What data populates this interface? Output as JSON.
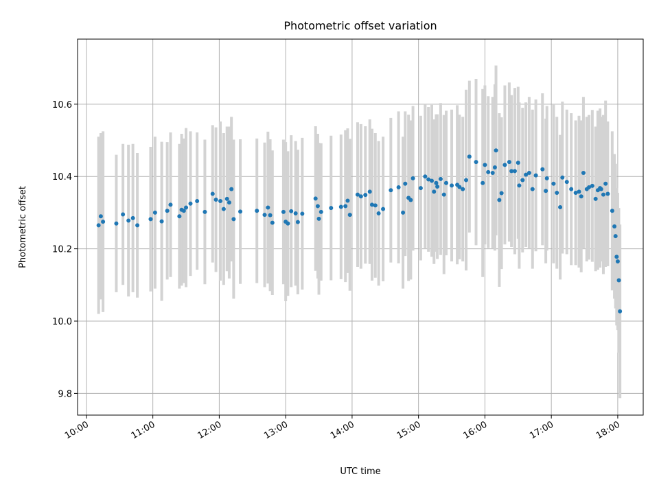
{
  "chart_data": {
    "type": "scatter",
    "title": "Photometric offset variation",
    "xlabel": "UTC time",
    "ylabel": "Photometric offset",
    "x_axis_kind": "time",
    "xlim": [
      "09:52",
      "18:23"
    ],
    "ylim": [
      9.74,
      10.78
    ],
    "x_ticks": [
      "10:00",
      "11:00",
      "12:00",
      "13:00",
      "14:00",
      "15:00",
      "16:00",
      "17:00",
      "18:00"
    ],
    "y_ticks": [
      "9.8",
      "10.0",
      "10.2",
      "10.4",
      "10.6"
    ],
    "grid": true,
    "marker_color": "#1f77b4",
    "errorbar_color": "#d3d3d3",
    "series": [
      {
        "x": [
          "10:11",
          "10:13",
          "10:15",
          "10:27",
          "10:33",
          "10:38",
          "10:42",
          "10:46",
          "10:58",
          "11:02",
          "11:08",
          "11:13",
          "11:16",
          "11:24",
          "11:26",
          "11:28",
          "11:30",
          "11:34",
          "11:40",
          "11:47",
          "11:54",
          "11:57",
          "12:01",
          "12:04",
          "12:07",
          "12:09",
          "12:11",
          "12:13",
          "12:19",
          "12:34",
          "12:41",
          "12:44",
          "12:46",
          "12:48",
          "12:58",
          "13:00",
          "13:02",
          "13:05",
          "13:09",
          "13:11",
          "13:15",
          "13:27",
          "13:29",
          "13:30",
          "13:32",
          "13:41",
          "13:50",
          "13:54",
          "13:56",
          "13:58",
          "14:05",
          "14:08",
          "14:12",
          "14:16",
          "14:18",
          "14:21",
          "14:24",
          "14:28",
          "14:35",
          "14:42",
          "14:46",
          "14:48",
          "14:51",
          "14:53",
          "14:55",
          "15:02",
          "15:06",
          "15:09",
          "15:12",
          "15:14",
          "15:16",
          "15:17",
          "15:20",
          "15:23",
          "15:25",
          "15:30",
          "15:35",
          "15:37",
          "15:40",
          "15:43",
          "15:46",
          "15:52",
          "15:58",
          "16:00",
          "16:03",
          "16:07",
          "16:09",
          "16:10",
          "16:13",
          "16:15",
          "16:18",
          "16:22",
          "16:24",
          "16:27",
          "16:30",
          "16:31",
          "16:34",
          "16:37",
          "16:40",
          "16:43",
          "16:46",
          "16:52",
          "16:55",
          "16:56",
          "17:02",
          "17:05",
          "17:08",
          "17:10",
          "17:14",
          "17:18",
          "17:22",
          "17:25",
          "17:27",
          "17:29",
          "17:32",
          "17:34",
          "17:37",
          "17:40",
          "17:42",
          "17:44",
          "17:45",
          "17:47",
          "17:49",
          "17:51",
          "17:55",
          "17:57",
          "17:58",
          "17:59",
          "18:00",
          "18:01",
          "18:02"
        ],
        "y": [
          10.265,
          10.29,
          10.275,
          10.27,
          10.295,
          10.278,
          10.285,
          10.265,
          10.282,
          10.3,
          10.276,
          10.305,
          10.322,
          10.29,
          10.308,
          10.305,
          10.314,
          10.325,
          10.332,
          10.302,
          10.352,
          10.336,
          10.332,
          10.31,
          10.338,
          10.328,
          10.365,
          10.282,
          10.303,
          10.305,
          10.294,
          10.314,
          10.293,
          10.272,
          10.302,
          10.275,
          10.27,
          10.304,
          10.298,
          10.274,
          10.297,
          10.339,
          10.318,
          10.283,
          10.302,
          10.313,
          10.316,
          10.318,
          10.333,
          10.294,
          10.35,
          10.345,
          10.349,
          10.358,
          10.322,
          10.32,
          10.298,
          10.31,
          10.362,
          10.37,
          10.3,
          10.38,
          10.341,
          10.335,
          10.395,
          10.368,
          10.4,
          10.392,
          10.388,
          10.358,
          10.382,
          10.372,
          10.393,
          10.35,
          10.382,
          10.375,
          10.377,
          10.371,
          10.365,
          10.39,
          10.455,
          10.44,
          10.382,
          10.432,
          10.412,
          10.41,
          10.425,
          10.472,
          10.335,
          10.354,
          10.432,
          10.44,
          10.415,
          10.415,
          10.438,
          10.375,
          10.39,
          10.405,
          10.41,
          10.365,
          10.403,
          10.42,
          10.36,
          10.395,
          10.38,
          10.355,
          10.315,
          10.397,
          10.385,
          10.365,
          10.355,
          10.358,
          10.345,
          10.41,
          10.365,
          10.37,
          10.374,
          10.338,
          10.362,
          10.368,
          10.365,
          10.35,
          10.38,
          10.352,
          10.305,
          10.262,
          10.235,
          10.178,
          10.165,
          10.113,
          10.027
        ],
        "err": [
          0.245,
          0.23,
          0.25,
          0.19,
          0.195,
          0.21,
          0.205,
          0.2,
          0.2,
          0.21,
          0.22,
          0.19,
          0.2,
          0.2,
          0.21,
          0.2,
          0.22,
          0.2,
          0.19,
          0.2,
          0.19,
          0.2,
          0.22,
          0.21,
          0.2,
          0.21,
          0.2,
          0.22,
          0.2,
          0.2,
          0.2,
          0.21,
          0.21,
          0.2,
          0.2,
          0.22,
          0.2,
          0.21,
          0.2,
          0.2,
          0.21,
          0.2,
          0.2,
          0.21,
          0.19,
          0.2,
          0.2,
          0.21,
          0.2,
          0.21,
          0.2,
          0.2,
          0.19,
          0.2,
          0.21,
          0.2,
          0.2,
          0.2,
          0.2,
          0.21,
          0.21,
          0.2,
          0.23,
          0.22,
          0.2,
          0.2,
          0.2,
          0.2,
          0.21,
          0.2,
          0.19,
          0.2,
          0.21,
          0.22,
          0.2,
          0.21,
          0.22,
          0.2,
          0.2,
          0.25,
          0.21,
          0.23,
          0.26,
          0.22,
          0.21,
          0.21,
          0.23,
          0.235,
          0.24,
          0.21,
          0.22,
          0.22,
          0.21,
          0.23,
          0.21,
          0.23,
          0.2,
          0.2,
          0.21,
          0.22,
          0.21,
          0.21,
          0.2,
          0.2,
          0.22,
          0.21,
          0.2,
          0.21,
          0.2,
          0.21,
          0.2,
          0.21,
          0.21,
          0.21,
          0.2,
          0.2,
          0.21,
          0.2,
          0.22,
          0.22,
          0.2,
          0.22,
          0.23,
          0.2,
          0.22,
          0.2,
          0.2,
          0.19,
          0.19,
          0.2,
          0.24
        ]
      }
    ]
  }
}
